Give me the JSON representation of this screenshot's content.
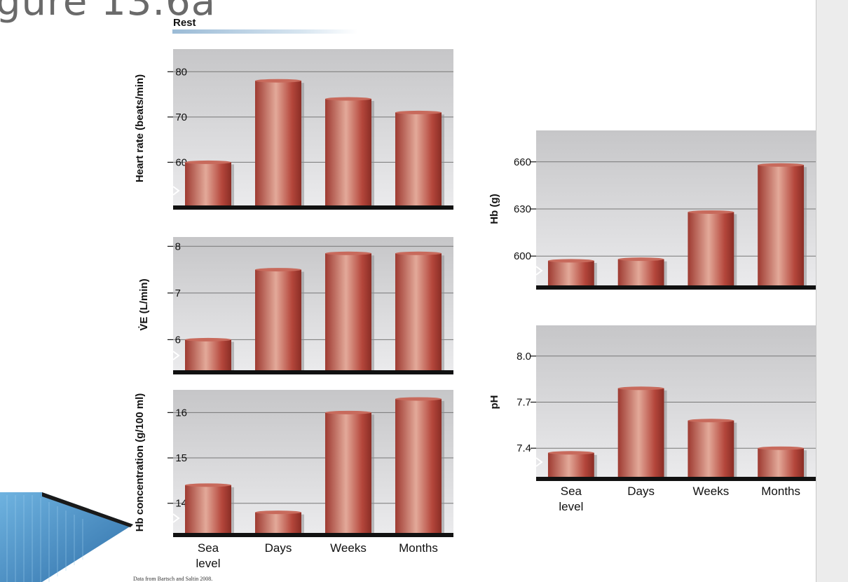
{
  "slide": {
    "title": "gure 13.6a",
    "source": "Data from Bartsch and Saltin 2008."
  },
  "colors": {
    "bar": "#b5473d",
    "bar_highlight": "#e0a596",
    "plot_bg_top": "#c8c8ca",
    "plot_bg_bottom": "#e6e6e8",
    "accent_arrow": "#4a8fc4"
  },
  "chart_data": [
    {
      "type": "bar",
      "title": "Rest",
      "ylabel": "Heart rate (beats/min)",
      "categories": [
        "Sea level",
        "Days",
        "Weeks",
        "Months"
      ],
      "values": [
        60,
        78,
        74,
        71
      ],
      "ylim": [
        50,
        85
      ],
      "yticks": [
        60,
        70,
        80
      ],
      "grid": true
    },
    {
      "type": "bar",
      "title": "",
      "ylabel": "V̇E (L/min)",
      "categories": [
        "Sea level",
        "Days",
        "Weeks",
        "Months"
      ],
      "values": [
        6.0,
        7.5,
        7.85,
        7.85
      ],
      "ylim": [
        5.3,
        8.2
      ],
      "yticks": [
        6,
        7,
        8
      ],
      "grid": true
    },
    {
      "type": "bar",
      "title": "",
      "ylabel": "Hb concentration (g/100 ml)",
      "categories": [
        "Sea level",
        "Days",
        "Weeks",
        "Months"
      ],
      "values": [
        14.4,
        13.8,
        16.0,
        16.3
      ],
      "ylim": [
        13.3,
        16.5
      ],
      "yticks": [
        14,
        15,
        16
      ],
      "xtick_lines": [
        [
          "Sea",
          "level"
        ],
        [
          "Days"
        ],
        [
          "Weeks"
        ],
        [
          "Months"
        ]
      ],
      "grid": true
    },
    {
      "type": "bar",
      "title": "",
      "ylabel": "Hb (g)",
      "categories": [
        "Sea level",
        "Days",
        "Weeks",
        "Months"
      ],
      "values": [
        597,
        598,
        628,
        658
      ],
      "ylim": [
        580,
        680
      ],
      "yticks": [
        600,
        630,
        660
      ],
      "yticklabels": [
        "600",
        "630",
        "660"
      ],
      "grid": true
    },
    {
      "type": "bar",
      "title": "",
      "ylabel": "pH",
      "categories": [
        "Sea level",
        "Days",
        "Weeks",
        "Months"
      ],
      "values": [
        7.37,
        7.79,
        7.58,
        7.4
      ],
      "ylim": [
        7.2,
        8.2
      ],
      "yticks": [
        7.4,
        7.7,
        8.0
      ],
      "yticklabels": [
        "7.4",
        "7.7",
        "8.0"
      ],
      "xtick_lines": [
        [
          "Sea",
          "level"
        ],
        [
          "Days"
        ],
        [
          "Weeks"
        ],
        [
          "Months"
        ]
      ],
      "grid": true
    }
  ]
}
